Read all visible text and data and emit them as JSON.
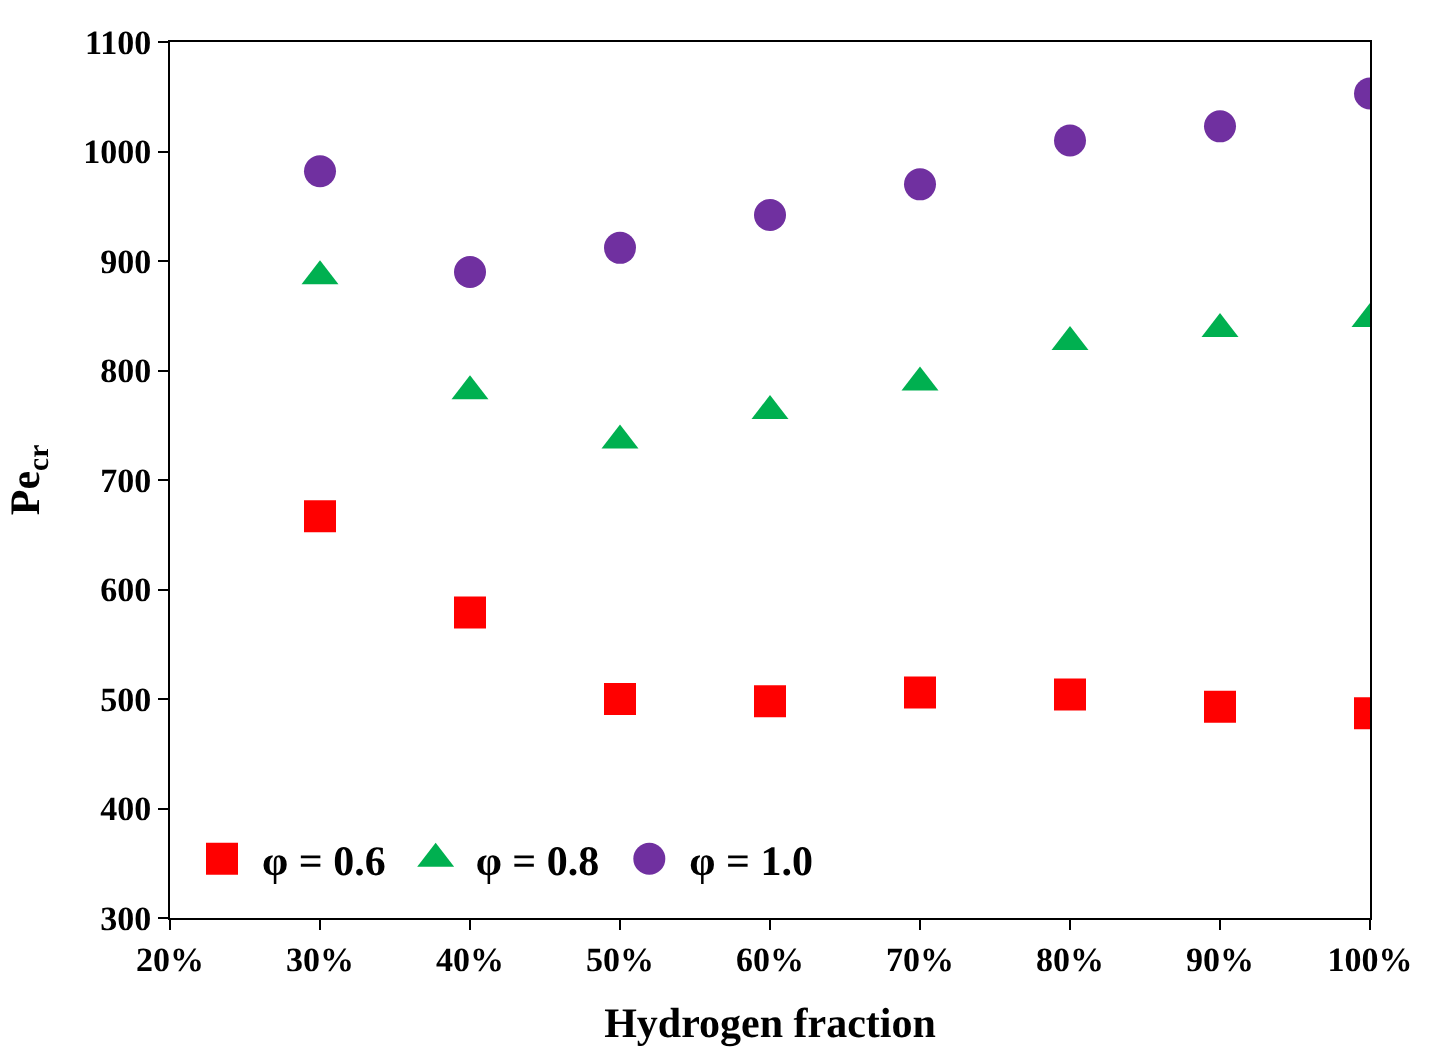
{
  "chart_data": {
    "type": "scatter",
    "xlabel": "Hydrogen fraction",
    "ylabel": "Pe$_{cr}$",
    "x": [
      30,
      40,
      50,
      60,
      70,
      80,
      90,
      100
    ],
    "xlim": [
      20,
      100
    ],
    "xticks": [
      {
        "value": 20,
        "label": "20%"
      },
      {
        "value": 30,
        "label": "30%"
      },
      {
        "value": 40,
        "label": "40%"
      },
      {
        "value": 50,
        "label": "50%"
      },
      {
        "value": 60,
        "label": "60%"
      },
      {
        "value": 70,
        "label": "70%"
      },
      {
        "value": 80,
        "label": "80%"
      },
      {
        "value": 90,
        "label": "90%"
      },
      {
        "value": 100,
        "label": "100%"
      }
    ],
    "ylim": [
      300,
      1100
    ],
    "yticks": [
      300,
      400,
      500,
      600,
      700,
      800,
      900,
      1000,
      1100
    ],
    "legend": "bottom left",
    "series": [
      {
        "name": "φ = 0.6",
        "color": "#ff0000",
        "marker": "square",
        "values": [
          667,
          579,
          500,
          498,
          506,
          504,
          493,
          487
        ]
      },
      {
        "name": "φ = 0.8",
        "color": "#00b050",
        "marker": "triangle",
        "values": [
          886,
          781,
          736,
          763,
          789,
          826,
          838,
          847
        ]
      },
      {
        "name": "φ = 1.0",
        "color": "#7030a0",
        "marker": "circle",
        "values": [
          982,
          890,
          912,
          942,
          970,
          1010,
          1023,
          1053
        ]
      }
    ]
  }
}
